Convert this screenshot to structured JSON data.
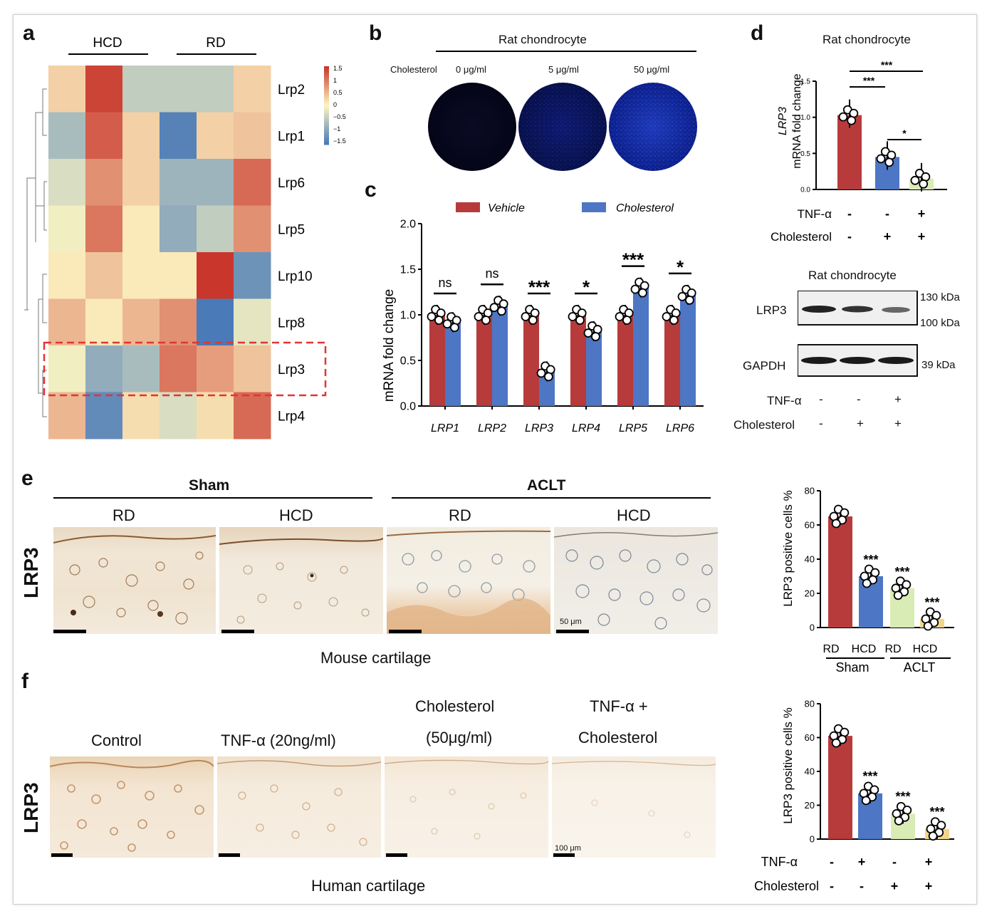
{
  "panels": {
    "a": "a",
    "b": "b",
    "c": "c",
    "d": "d",
    "e": "e",
    "f": "f"
  },
  "heatmap": {
    "groups": [
      "HCD",
      "RD"
    ],
    "rows": [
      "Lrp2",
      "Lrp1",
      "Lrp6",
      "Lrp5",
      "Lrp10",
      "Lrp8",
      "Lrp3",
      "Lrp4"
    ],
    "values": [
      [
        0.3,
        1.4,
        -0.5,
        -0.5,
        -0.5,
        0.3
      ],
      [
        -0.7,
        1.2,
        0.3,
        -1.4,
        0.3,
        0.4
      ],
      [
        -0.3,
        0.8,
        0.3,
        -0.8,
        -0.8,
        1.1
      ],
      [
        -0.1,
        1.0,
        0.1,
        -0.9,
        -0.5,
        0.8
      ],
      [
        0.1,
        0.4,
        0.1,
        0.1,
        1.5,
        -1.2
      ],
      [
        0.5,
        0.1,
        0.5,
        0.8,
        -1.5,
        -0.2
      ],
      [
        -0.1,
        -0.9,
        -0.7,
        1.0,
        0.7,
        0.4
      ],
      [
        0.5,
        -1.3,
        0.2,
        -0.3,
        0.2,
        1.1
      ]
    ],
    "legend_ticks": [
      "1.5",
      "1",
      "0.5",
      "0",
      "−0.5",
      "−1",
      "−1.5"
    ],
    "colors": {
      "high": "#c9372c",
      "mid": "#fdf6c3",
      "low": "#4a7ab7"
    }
  },
  "panel_b": {
    "title": "Rat chondrocyte",
    "row_label": "Cholesterol",
    "doses": [
      "0 μg/ml",
      "5 μg/ml",
      "50 μg/ml"
    ],
    "dish_intensity": [
      0.0,
      0.45,
      0.85
    ]
  },
  "chart_c": {
    "type": "bar",
    "legend": [
      "Vehicle",
      "Cholesterol"
    ],
    "ylabel": "mRNA fold change",
    "yticks": [
      "0.0",
      "0.5",
      "1.0",
      "1.5",
      "2.0"
    ],
    "ylim": [
      0,
      2.0
    ],
    "categories": [
      "LRP1",
      "LRP2",
      "LRP3",
      "LRP4",
      "LRP5",
      "LRP6"
    ],
    "vehicle": [
      1.0,
      1.0,
      1.0,
      1.0,
      1.0,
      1.0
    ],
    "cholesterol": [
      0.92,
      1.1,
      0.38,
      0.82,
      1.3,
      1.22
    ],
    "significance": [
      "ns",
      "ns",
      "***",
      "*",
      "***",
      "*"
    ],
    "colors": {
      "vehicle": "#b83b3b",
      "cholesterol": "#4d76c4"
    }
  },
  "chart_d": {
    "type": "bar",
    "title": "Rat chondrocyte",
    "ylabel_gene": "LRP3",
    "ylabel": "mRNA fold change",
    "yticks": [
      "0.0",
      "0.5",
      "1.0",
      "1.5"
    ],
    "ylim": [
      0,
      1.5
    ],
    "values": [
      1.03,
      0.45,
      0.15
    ],
    "colors": [
      "#b83b3b",
      "#4d76c4",
      "#d9ecb5"
    ],
    "sig": [
      {
        "text": "***"
      },
      {
        "text": "***"
      },
      {
        "text": "*"
      }
    ],
    "rows": [
      {
        "label": "TNF-α",
        "marks": [
          "-",
          "-",
          "+"
        ]
      },
      {
        "label": "Cholesterol",
        "marks": [
          "-",
          "+",
          "+"
        ]
      }
    ]
  },
  "western": {
    "title": "Rat chondrocyte",
    "proteins": [
      "LRP3",
      "GAPDH"
    ],
    "markers": [
      "130 kDa",
      "100 kDa",
      "39 kDa"
    ],
    "rows": [
      {
        "label": "TNF-α",
        "marks": [
          "-",
          "-",
          "+"
        ]
      },
      {
        "label": "Cholesterol",
        "marks": [
          "-",
          "+",
          "+"
        ]
      }
    ]
  },
  "panel_e": {
    "groups": [
      "Sham",
      "ACLT"
    ],
    "subgroups": [
      "RD",
      "HCD",
      "RD",
      "HCD"
    ],
    "stain": "LRP3",
    "scale": "50 μm",
    "caption": "Mouse cartilage"
  },
  "chart_e": {
    "type": "bar",
    "ylabel": "LRP3 positive cells %",
    "yticks": [
      "0",
      "20",
      "40",
      "60",
      "80"
    ],
    "ylim": [
      0,
      80
    ],
    "values": [
      65,
      30,
      23,
      5
    ],
    "colors": [
      "#b83b3b",
      "#4d76c4",
      "#d9ecb5",
      "#f2d58a"
    ],
    "sig": [
      "",
      "***",
      "***",
      "***"
    ],
    "xlabels": [
      "RD",
      "HCD",
      "RD",
      "HCD"
    ],
    "groups": [
      "Sham",
      "ACLT"
    ]
  },
  "panel_f": {
    "labels": [
      "Control",
      "TNF-α (20ng/ml)",
      "Cholesterol",
      "(50μg/ml)",
      "TNF-α +",
      "Cholesterol"
    ],
    "stain": "LRP3",
    "scale": "100 μm",
    "caption": "Human cartilage"
  },
  "chart_f": {
    "type": "bar",
    "ylabel": "LRP3 positive cells %",
    "yticks": [
      "0",
      "20",
      "40",
      "60",
      "80"
    ],
    "ylim": [
      0,
      80
    ],
    "values": [
      61,
      27,
      15,
      6
    ],
    "colors": [
      "#b83b3b",
      "#4d76c4",
      "#d9ecb5",
      "#f2d58a"
    ],
    "sig": [
      "",
      "***",
      "***",
      "***"
    ],
    "rows": [
      {
        "label": "TNF-α",
        "marks": [
          "-",
          "+",
          "-",
          "+"
        ]
      },
      {
        "label": "Cholesterol",
        "marks": [
          "-",
          "-",
          "+",
          "+"
        ]
      }
    ]
  }
}
